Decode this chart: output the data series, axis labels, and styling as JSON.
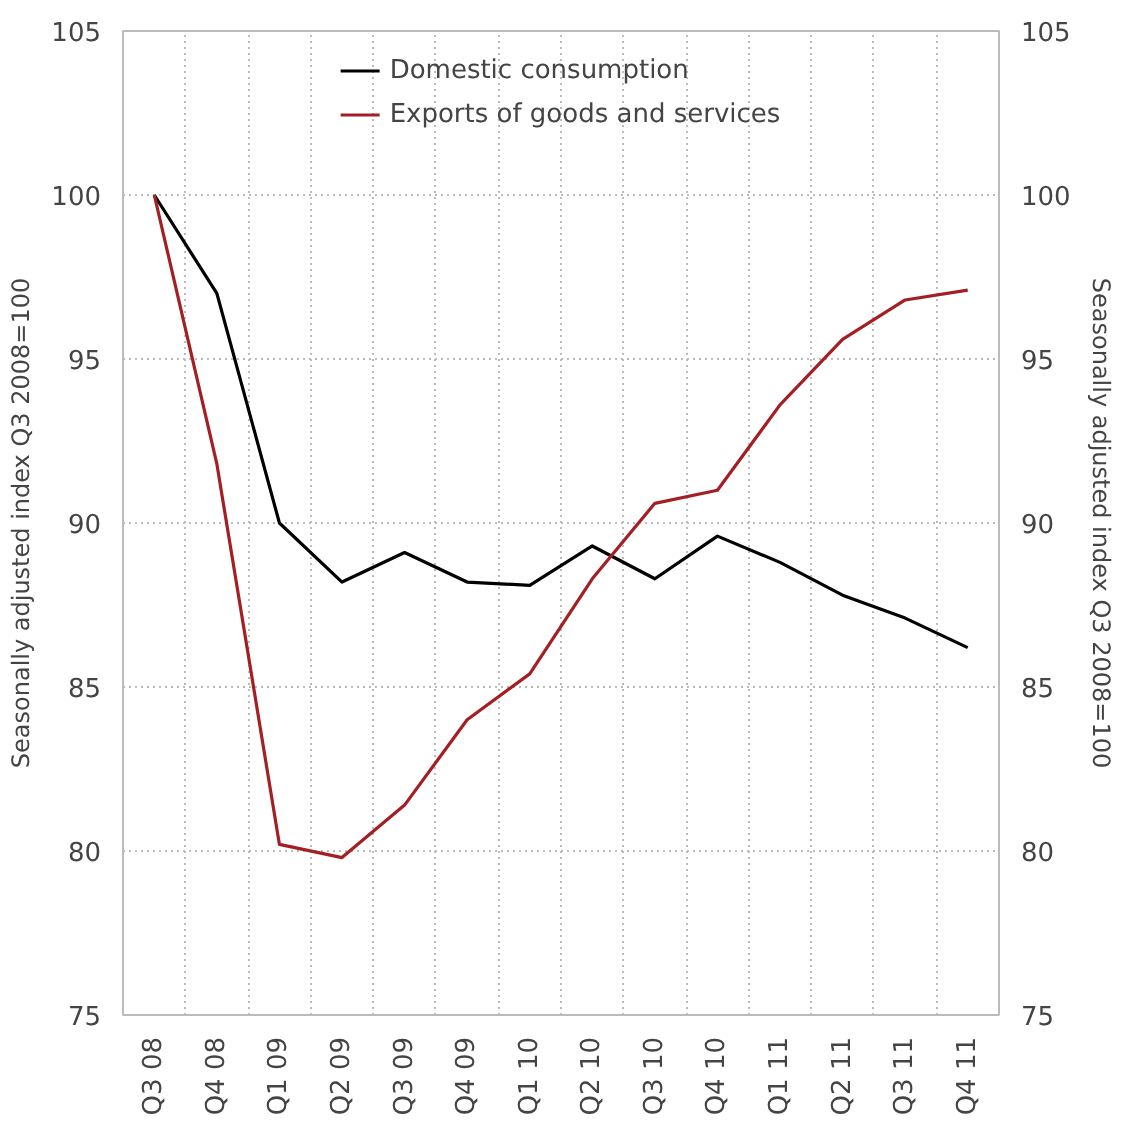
{
  "chart_data": {
    "type": "line",
    "ylabel": "Seasonally adjusted index Q3 2008=100",
    "y2label": "Seasonally adjusted index Q3 2008=100",
    "categories": [
      "Q3 08",
      "Q4 08",
      "Q1 09",
      "Q2 09",
      "Q3 09",
      "Q4 09",
      "Q1 10",
      "Q2 10",
      "Q3 10",
      "Q4 10",
      "Q1 11",
      "Q2 11",
      "Q3 11",
      "Q4 11"
    ],
    "series": [
      {
        "name": "Domestic consumption",
        "color": "#000000",
        "values": [
          100,
          97,
          90,
          88.2,
          89.1,
          88.2,
          88.1,
          89.3,
          88.3,
          89.6,
          88.8,
          87.8,
          87.1,
          86.2
        ]
      },
      {
        "name": "Exports of goods and services",
        "color": "#a31f24",
        "values": [
          100,
          91.8,
          80.2,
          79.8,
          81.4,
          84.0,
          85.4,
          88.3,
          90.6,
          91.0,
          93.6,
          95.6,
          96.8,
          97.1
        ]
      }
    ],
    "ylim": [
      75,
      105
    ],
    "yticks": [
      75,
      80,
      85,
      90,
      95,
      100,
      105
    ],
    "y2lim": [
      75,
      105
    ],
    "y2ticks": [
      75,
      80,
      85,
      90,
      95,
      100,
      105
    ],
    "grid": true,
    "legend": "top",
    "marker": "none",
    "line_style": "solid"
  }
}
